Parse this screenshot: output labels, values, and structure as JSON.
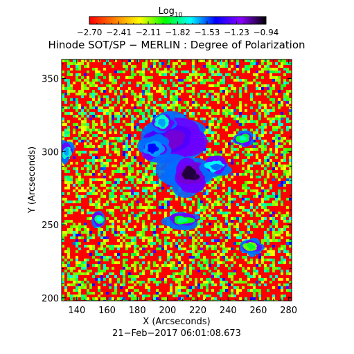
{
  "chart_data": {
    "type": "heatmap",
    "title": "Hinode SOT/SP − MERLIN : Degree of Polarization",
    "subtitle": "21−Feb−2017 06:01:08.673",
    "xlabel": "X (Arcseconds)",
    "ylabel": "Y (Arcseconds)",
    "xlim": [
      130,
      282
    ],
    "ylim": [
      198,
      363
    ],
    "x_ticks": [
      140,
      160,
      180,
      200,
      220,
      240,
      260,
      280
    ],
    "y_ticks": [
      200,
      250,
      300,
      350
    ],
    "x_tick_labels": [
      "140",
      "160",
      "180",
      "200",
      "220",
      "240",
      "260",
      "280"
    ],
    "y_tick_labels": [
      "200",
      "250",
      "300",
      "350"
    ],
    "colorbar": {
      "title_main": "Log",
      "title_sub": "10",
      "range": [
        -2.7,
        -0.94
      ],
      "tick_labels": [
        "−2.70",
        "−2.41",
        "−2.11",
        "−1.82",
        "−1.53",
        "−1.23",
        "−0.94"
      ],
      "colormap": [
        "#ff0000",
        "#ff7f00",
        "#ffff00",
        "#00ff00",
        "#00ffff",
        "#0000ff",
        "#8b00ff",
        "#000000"
      ]
    },
    "background_level": -2.55,
    "polarized_regions": [
      {
        "x": 202,
        "y": 307,
        "rx": 15,
        "ry": 10,
        "level": -1.15
      },
      {
        "x": 214,
        "y": 284,
        "rx": 9,
        "ry": 8,
        "level": -1.0
      },
      {
        "x": 232,
        "y": 290,
        "rx": 6,
        "ry": 4,
        "level": -1.55
      },
      {
        "x": 190,
        "y": 302,
        "rx": 6,
        "ry": 5,
        "level": -1.45
      },
      {
        "x": 196,
        "y": 320,
        "rx": 5,
        "ry": 4,
        "level": -1.6
      },
      {
        "x": 250,
        "y": 309,
        "rx": 4,
        "ry": 3,
        "level": -1.75
      },
      {
        "x": 155,
        "y": 254,
        "rx": 3,
        "ry": 3,
        "level": -1.7
      },
      {
        "x": 210,
        "y": 253,
        "rx": 6,
        "ry": 3,
        "level": -1.8
      },
      {
        "x": 133,
        "y": 300,
        "rx": 3,
        "ry": 4,
        "level": -1.6
      },
      {
        "x": 255,
        "y": 235,
        "rx": 4,
        "ry": 3,
        "level": -1.9
      }
    ]
  }
}
